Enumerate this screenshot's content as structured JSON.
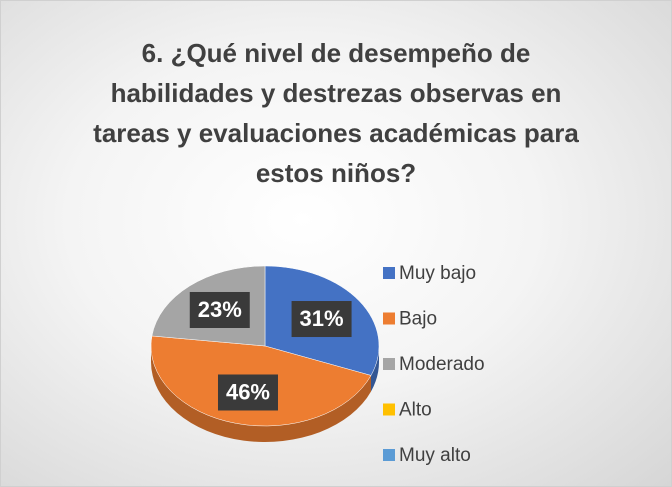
{
  "chart_data": {
    "type": "pie",
    "title": "6. ¿Qué nivel de desempeño de habilidades y destrezas observas en tareas y evaluaciones académicas para estos niños?",
    "categories": [
      "Muy bajo",
      "Bajo",
      "Moderado",
      "Alto",
      "Muy alto"
    ],
    "values": [
      31,
      46,
      23,
      0,
      0
    ],
    "value_labels": [
      "31%",
      "46%",
      "23%",
      null,
      null
    ],
    "colors": [
      "#4472c4",
      "#ed7d31",
      "#a5a5a5",
      "#ffc000",
      "#5b9bd5"
    ],
    "legend": "right"
  }
}
